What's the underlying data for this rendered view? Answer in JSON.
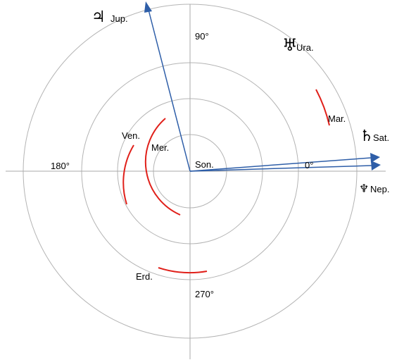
{
  "angles": {
    "deg0": "0°",
    "deg90": "90°",
    "deg180": "180°",
    "deg270": "270°"
  },
  "colors": {
    "orbit": "#b4b4b4",
    "axis": "#aaaaaa",
    "arc": "#e0201a",
    "arrow": "#2e5ea8"
  },
  "bodies": {
    "son": {
      "label": "Son."
    },
    "mer": {
      "label": "Mer."
    },
    "ven": {
      "label": "Ven."
    },
    "erd": {
      "label": "Erd."
    },
    "mar": {
      "label": "Mar."
    },
    "jup": {
      "symbol": "♃",
      "label": "Jup."
    },
    "sat": {
      "symbol": "♄",
      "label": "Sat."
    },
    "ura": {
      "symbol": "♅",
      "label": "Ura."
    },
    "nep": {
      "symbol": "♆",
      "label": "Nep."
    }
  }
}
